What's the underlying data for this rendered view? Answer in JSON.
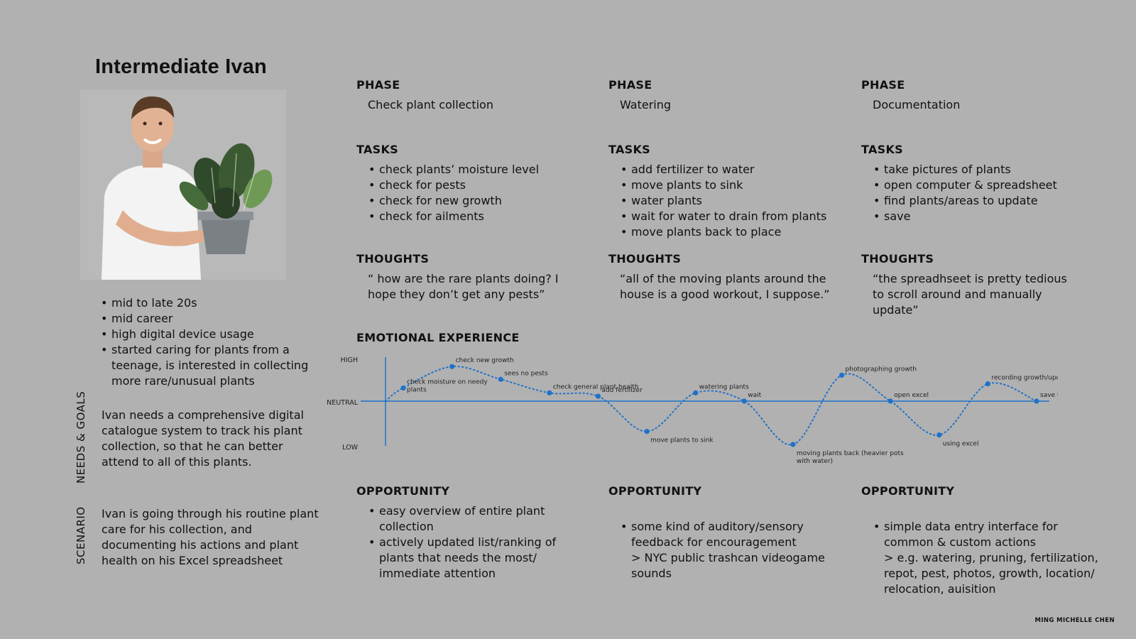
{
  "persona": {
    "name": "Intermediate Ivan",
    "facts": [
      "mid to late 20s",
      "mid career",
      "high digital device usage",
      "started caring for plants from a teenage, is interested in collecting more rare/unusual plants"
    ],
    "needs_label": "NEEDS & GOALS",
    "needs_text": "Ivan needs a comprehensive digital catalogue system to track his plant collection, so that he can better attend to all of this plants.",
    "scenario_label": "SCENARIO",
    "scenario_text": "Ivan is going through his routine plant care for his collection, and documenting his actions and plant health on his Excel spreadsheet"
  },
  "labels": {
    "phase": "PHASE",
    "tasks": "TASKS",
    "thoughts": "THOUGHTS",
    "opportunity": "OPPORTUNITY",
    "emotional_experience": "EMOTIONAL EXPERIENCE"
  },
  "phases": [
    {
      "name": "Check plant collection",
      "tasks": [
        "check plants’ moisture level",
        "check for pests",
        "check for new growth",
        "check for ailments"
      ],
      "thoughts": "“ how are the rare plants doing? I hope they don’t get any pests”",
      "opportunities": [
        "easy overview of entire plant collection",
        "actively updated list/ranking of plants that needs the most/ immediate attention"
      ]
    },
    {
      "name": "Watering",
      "tasks": [
        "add fertilizer to water",
        "move plants to sink",
        "water plants",
        "wait for water to drain from plants",
        "move plants back to place"
      ],
      "thoughts": "“all of the moving plants around the house is a good workout, I suppose.”",
      "opportunities": [
        "some kind of auditory/sensory feedback for encouragement\n> NYC public trashcan videogame sounds"
      ]
    },
    {
      "name": "Documentation",
      "tasks": [
        "take pictures of plants",
        "open computer & spreadsheet",
        "find plants/areas to update",
        "save"
      ],
      "thoughts": "“the spreadhseet is pretty tedious to scroll around and manually update”",
      "opportunities": [
        "simple data entry interface for common & custom actions\n> e.g. watering, pruning, fertilization, repot, pest, photos, growth, location/ relocation, auisition"
      ]
    }
  ],
  "chart_data": {
    "type": "line",
    "title": "EMOTIONAL EXPERIENCE",
    "y_levels": [
      "HIGH",
      "NEUTRAL",
      "LOW"
    ],
    "ylim": [
      -1,
      1
    ],
    "grid": false,
    "line_style": "dotted",
    "colors": {
      "line": "#1f72c8",
      "axis": "#1f72c8"
    },
    "points": [
      {
        "label": "check moisture on needy plants",
        "y": 0.35
      },
      {
        "label": "check new growth",
        "y": 0.92
      },
      {
        "label": "sees no pests",
        "y": 0.58
      },
      {
        "label": "check general plant health",
        "y": 0.22
      },
      {
        "label": "add fertilizer",
        "y": 0.13
      },
      {
        "label": "move plants to sink",
        "y": -0.7
      },
      {
        "label": "watering plants",
        "y": 0.22
      },
      {
        "label": "wait",
        "y": 0.0
      },
      {
        "label": "moving plants back (heavier pots with water)",
        "y": -1.0
      },
      {
        "label": "photographing growth",
        "y": 0.69
      },
      {
        "label": "open excel",
        "y": 0.0
      },
      {
        "label": "using excel",
        "y": -0.78
      },
      {
        "label": "recording growth/update data",
        "y": 0.46
      },
      {
        "label": "save file",
        "y": 0.0
      }
    ]
  },
  "footer": {
    "credit": "MING MICHELLE CHEN"
  }
}
